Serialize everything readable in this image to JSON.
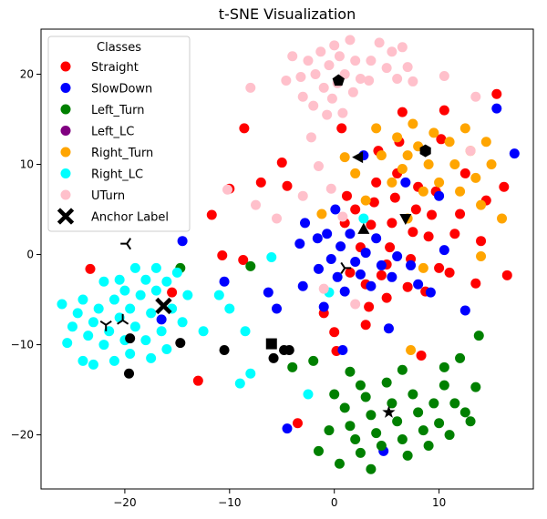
{
  "chart_data": {
    "type": "scatter",
    "title": "t-SNE Visualization",
    "xlabel": "",
    "ylabel": "",
    "xlim": [
      -28,
      19
    ],
    "ylim": [
      -26,
      25
    ],
    "xticks": [
      -20,
      -10,
      0,
      10
    ],
    "yticks": [
      -20,
      -10,
      0,
      10,
      20
    ],
    "legend": {
      "title": "Classes",
      "placement": "top-left"
    },
    "series": [
      {
        "name": "Straight",
        "color": "#ff0000",
        "marker": "circle",
        "points": [
          [
            -23.3,
            -1.6
          ],
          [
            -15.5,
            -4.2
          ],
          [
            -13,
            -14
          ],
          [
            -11.7,
            4.4
          ],
          [
            -10.7,
            -0.1
          ],
          [
            -10,
            7.3
          ],
          [
            -8.7,
            -0.6
          ],
          [
            -8.6,
            14
          ],
          [
            -7,
            8
          ],
          [
            -5,
            10.2
          ],
          [
            -4.5,
            7.6
          ],
          [
            -3.5,
            -18.7
          ],
          [
            -1,
            -6.5
          ],
          [
            0,
            -8.6
          ],
          [
            0.2,
            -10.7
          ],
          [
            0.7,
            14
          ],
          [
            1,
            3.5
          ],
          [
            1.2,
            6.5
          ],
          [
            1.5,
            -2
          ],
          [
            2,
            5
          ],
          [
            2.5,
            0.8
          ],
          [
            3,
            -3.3
          ],
          [
            3.3,
            -5.8
          ],
          [
            3.5,
            3.3
          ],
          [
            3.8,
            5.8
          ],
          [
            4,
            8
          ],
          [
            4.2,
            11.5
          ],
          [
            4.5,
            -2.3
          ],
          [
            5,
            -1.1
          ],
          [
            5.3,
            0.8
          ],
          [
            5.5,
            3.5
          ],
          [
            5.8,
            6.3
          ],
          [
            6,
            9
          ],
          [
            6.2,
            12.5
          ],
          [
            6.5,
            15.8
          ],
          [
            7,
            -3.6
          ],
          [
            7.3,
            -0.5
          ],
          [
            7.5,
            2.5
          ],
          [
            7.8,
            5
          ],
          [
            8,
            7.5
          ],
          [
            8.3,
            -11.2
          ],
          [
            8.7,
            -4.1
          ],
          [
            9,
            2
          ],
          [
            9.3,
            4.4
          ],
          [
            9.7,
            7
          ],
          [
            10,
            -1.5
          ],
          [
            10.2,
            12.8
          ],
          [
            10.5,
            16
          ],
          [
            11,
            -2
          ],
          [
            11.5,
            2.3
          ],
          [
            12,
            4.5
          ],
          [
            12.5,
            9
          ],
          [
            13.5,
            -3.2
          ],
          [
            14,
            1.5
          ],
          [
            14.5,
            6
          ],
          [
            15.5,
            17.8
          ],
          [
            16.2,
            7.5
          ],
          [
            16.5,
            -2.3
          ],
          [
            5,
            -4.8
          ],
          [
            3,
            -7.8
          ]
        ]
      },
      {
        "name": "SlowDown",
        "color": "#0000ff",
        "marker": "circle",
        "points": [
          [
            -16.5,
            -7.2
          ],
          [
            -14.5,
            1.5
          ],
          [
            -10.5,
            -3
          ],
          [
            -6.3,
            -4.2
          ],
          [
            -5.5,
            -6
          ],
          [
            -4.5,
            -19.3
          ],
          [
            -3.3,
            1.2
          ],
          [
            -3,
            -3.5
          ],
          [
            -2.8,
            3.5
          ],
          [
            -1.6,
            1.8
          ],
          [
            -1.5,
            -1.6
          ],
          [
            -1,
            -5.8
          ],
          [
            -0.7,
            2.3
          ],
          [
            -0.3,
            -0.5
          ],
          [
            0.1,
            5
          ],
          [
            0.3,
            -2.5
          ],
          [
            0.6,
            0.9
          ],
          [
            0.8,
            -10.6
          ],
          [
            1,
            -4.1
          ],
          [
            1.5,
            2.3
          ],
          [
            2,
            -0.8
          ],
          [
            2.5,
            -2.2
          ],
          [
            3,
            0.2
          ],
          [
            3.5,
            -3.5
          ],
          [
            4,
            1.8
          ],
          [
            4.5,
            -1.2
          ],
          [
            4.7,
            -21.8
          ],
          [
            5.2,
            -8.2
          ],
          [
            5.5,
            -2.5
          ],
          [
            6,
            -0.2
          ],
          [
            6.8,
            8
          ],
          [
            7.3,
            -1.2
          ],
          [
            8,
            -3.3
          ],
          [
            9.2,
            -4.2
          ],
          [
            10,
            6.5
          ],
          [
            10.5,
            0.5
          ],
          [
            12.5,
            -6.2
          ],
          [
            15.5,
            16.2
          ],
          [
            17.2,
            11.2
          ],
          [
            2.8,
            11
          ]
        ]
      },
      {
        "name": "Left_Turn",
        "color": "#008000",
        "marker": "circle",
        "points": [
          [
            -14.7,
            -1.5
          ],
          [
            -8,
            -1.3
          ],
          [
            -4,
            -12.5
          ],
          [
            -2,
            -11.8
          ],
          [
            0,
            -15.5
          ],
          [
            1,
            -17
          ],
          [
            1.5,
            -19
          ],
          [
            2,
            -20.5
          ],
          [
            2.5,
            -22
          ],
          [
            3,
            -15.8
          ],
          [
            3.5,
            -17.8
          ],
          [
            4,
            -19.8
          ],
          [
            4.5,
            -21.2
          ],
          [
            5,
            -14.2
          ],
          [
            5.5,
            -16.5
          ],
          [
            6,
            -18.5
          ],
          [
            6.5,
            -20.5
          ],
          [
            7,
            -22.3
          ],
          [
            7.5,
            -15.5
          ],
          [
            8,
            -17.5
          ],
          [
            8.5,
            -19.5
          ],
          [
            9,
            -21.2
          ],
          [
            9.5,
            -16.5
          ],
          [
            10,
            -18.7
          ],
          [
            10.5,
            -14.5
          ],
          [
            11,
            -20
          ],
          [
            -1.5,
            -21.8
          ],
          [
            -0.5,
            -19.5
          ],
          [
            0.5,
            -23.2
          ],
          [
            1.5,
            -13
          ],
          [
            2.5,
            -14.5
          ],
          [
            3.5,
            -23.8
          ],
          [
            6.5,
            -12.8
          ],
          [
            11.5,
            -16.5
          ],
          [
            12,
            -11.5
          ],
          [
            13,
            -18.5
          ],
          [
            13.5,
            -14.7
          ],
          [
            13.8,
            -9
          ],
          [
            12.5,
            -17.5
          ],
          [
            10.5,
            -12.5
          ]
        ]
      },
      {
        "name": "Left_LC",
        "color": "#800080",
        "marker": "circle",
        "points": []
      },
      {
        "name": "Right_Turn",
        "color": "#ffa500",
        "marker": "circle",
        "points": [
          [
            -1.2,
            4.5
          ],
          [
            1,
            10.8
          ],
          [
            2,
            9
          ],
          [
            3,
            6
          ],
          [
            4,
            14
          ],
          [
            4.5,
            11
          ],
          [
            5.5,
            8
          ],
          [
            6,
            13
          ],
          [
            6.5,
            9.5
          ],
          [
            7,
            4
          ],
          [
            7,
            11
          ],
          [
            7.5,
            14.5
          ],
          [
            8,
            12
          ],
          [
            8.5,
            -1.5
          ],
          [
            8.5,
            7
          ],
          [
            9,
            10
          ],
          [
            9.5,
            13.5
          ],
          [
            10,
            8
          ],
          [
            11,
            12.5
          ],
          [
            11.5,
            10
          ],
          [
            12,
            7
          ],
          [
            12.5,
            14
          ],
          [
            13,
            11.5
          ],
          [
            13.5,
            8.5
          ],
          [
            14,
            -0.2
          ],
          [
            14,
            5.5
          ],
          [
            14.5,
            12.5
          ],
          [
            15,
            10
          ],
          [
            16,
            4
          ],
          [
            7.3,
            -10.6
          ]
        ]
      },
      {
        "name": "Right_LC",
        "color": "#00ffff",
        "marker": "circle",
        "points": [
          [
            -26,
            -5.5
          ],
          [
            -25.5,
            -9.8
          ],
          [
            -25,
            -8
          ],
          [
            -24.5,
            -6.5
          ],
          [
            -24,
            -11.8
          ],
          [
            -24,
            -5
          ],
          [
            -23.5,
            -9
          ],
          [
            -23,
            -7.5
          ],
          [
            -23,
            -12.2
          ],
          [
            -22.5,
            -6
          ],
          [
            -22,
            -3
          ],
          [
            -22,
            -10
          ],
          [
            -21.5,
            -8.5
          ],
          [
            -21,
            -5
          ],
          [
            -21,
            -11.8
          ],
          [
            -20.5,
            -7
          ],
          [
            -20.5,
            -2.8
          ],
          [
            -20,
            -9.5
          ],
          [
            -20,
            -4
          ],
          [
            -19.5,
            -6
          ],
          [
            -19.5,
            -11
          ],
          [
            -19,
            -1.5
          ],
          [
            -19,
            -8
          ],
          [
            -18.5,
            -4.5
          ],
          [
            -18,
            -9.5
          ],
          [
            -18,
            -2.8
          ],
          [
            -17.5,
            -6.5
          ],
          [
            -17.5,
            -11.5
          ],
          [
            -17,
            -4
          ],
          [
            -17,
            -1.5
          ],
          [
            -16.5,
            -8.5
          ],
          [
            -16,
            -3
          ],
          [
            -16,
            -10.5
          ],
          [
            -15.5,
            -6
          ],
          [
            -15,
            -2
          ],
          [
            -14.5,
            -7.5
          ],
          [
            -14,
            -4.5
          ],
          [
            -12.5,
            -8.5
          ],
          [
            -11,
            -4.5
          ],
          [
            -10,
            -6
          ],
          [
            -9,
            -14.3
          ],
          [
            -8.5,
            -8.5
          ],
          [
            -8,
            -13.2
          ],
          [
            -6,
            -0.3
          ],
          [
            -2.5,
            -15.5
          ],
          [
            -0.5,
            -4.2
          ],
          [
            2.8,
            4
          ]
        ]
      },
      {
        "name": "UTurn",
        "color": "#ffc0cb",
        "marker": "circle",
        "points": [
          [
            -8,
            18.5
          ],
          [
            -4.6,
            19.3
          ],
          [
            -4,
            22
          ],
          [
            -3.2,
            19.7
          ],
          [
            -3,
            17.5
          ],
          [
            -2.5,
            21.5
          ],
          [
            -2.2,
            13
          ],
          [
            -2,
            16.5
          ],
          [
            -1.8,
            20
          ],
          [
            -1.3,
            22.5
          ],
          [
            -1,
            18.5
          ],
          [
            -0.7,
            15.5
          ],
          [
            -0.5,
            21
          ],
          [
            -0.2,
            17.3
          ],
          [
            0,
            23.2
          ],
          [
            0.3,
            19
          ],
          [
            0.5,
            22
          ],
          [
            0.8,
            15.7
          ],
          [
            1,
            20
          ],
          [
            1.5,
            23.8
          ],
          [
            1.8,
            18
          ],
          [
            2,
            21.5
          ],
          [
            2.5,
            19.5
          ],
          [
            3.3,
            19.3
          ],
          [
            3.5,
            21.5
          ],
          [
            4.3,
            23.5
          ],
          [
            5,
            20.7
          ],
          [
            5.5,
            22.5
          ],
          [
            6,
            19.5
          ],
          [
            6.5,
            23
          ],
          [
            7,
            20.8
          ],
          [
            7.5,
            19.2
          ],
          [
            10.5,
            19.8
          ],
          [
            13,
            11.5
          ],
          [
            13.5,
            17.5
          ],
          [
            -7.5,
            5.5
          ],
          [
            -5.5,
            4
          ],
          [
            -3,
            6.5
          ],
          [
            -1.5,
            9.8
          ],
          [
            -0.3,
            7.3
          ],
          [
            0.8,
            4.2
          ],
          [
            -10.2,
            7.2
          ],
          [
            2,
            -5.5
          ],
          [
            -1,
            -3.8
          ]
        ]
      },
      {
        "name": "Anchor Label",
        "color": "#000000",
        "marker": "x",
        "points": [
          [
            -16.3,
            -5.7
          ]
        ]
      }
    ],
    "anchor_markers": [
      {
        "marker": "circle",
        "x": -19.5,
        "y": -9.3
      },
      {
        "marker": "circle",
        "x": -19.6,
        "y": -13.2
      },
      {
        "marker": "circle",
        "x": -14.7,
        "y": -9.8
      },
      {
        "marker": "circle",
        "x": -10.5,
        "y": -10.6
      },
      {
        "marker": "circle",
        "x": -5.8,
        "y": -11.5
      },
      {
        "marker": "circle",
        "x": -4.8,
        "y": -10.6
      },
      {
        "marker": "circle",
        "x": -4.3,
        "y": -10.6
      },
      {
        "marker": "square",
        "x": -6,
        "y": -9.9
      },
      {
        "marker": "pentagon",
        "x": 0.4,
        "y": 19.3
      },
      {
        "marker": "hexagon",
        "x": 8.7,
        "y": 11.5
      },
      {
        "marker": "triangle-left",
        "x": 2.3,
        "y": 10.8
      },
      {
        "marker": "triangle-up",
        "x": 2.8,
        "y": 2.8
      },
      {
        "marker": "triangle-down",
        "x": 6.8,
        "y": 4
      },
      {
        "marker": "star",
        "x": 5.2,
        "y": -17.5
      },
      {
        "marker": "tri-left",
        "x": -19.8,
        "y": 1.2
      },
      {
        "marker": "tri-down",
        "x": -21.8,
        "y": -7.8
      },
      {
        "marker": "tri-up",
        "x": -20.2,
        "y": -7.3
      },
      {
        "marker": "tri-right",
        "x": 1,
        "y": -1.5
      }
    ]
  }
}
